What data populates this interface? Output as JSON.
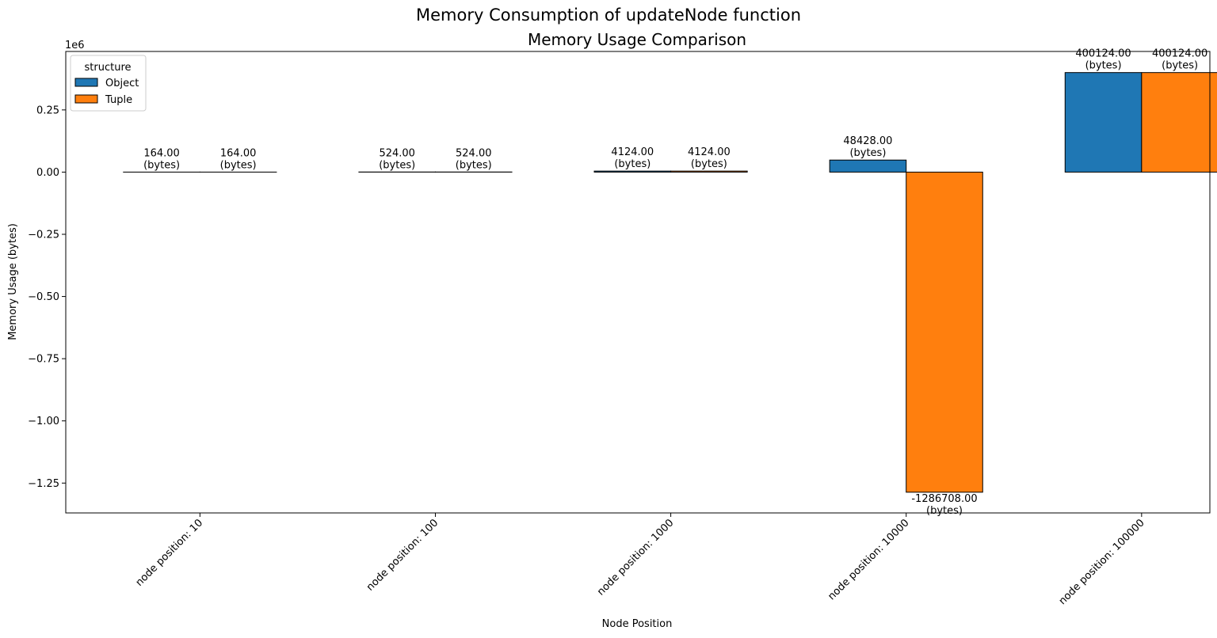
{
  "suptitle": "Memory Consumption of updateNode function",
  "chart_data": {
    "type": "bar",
    "title": "Memory Usage Comparison",
    "xlabel": "Node Position",
    "ylabel": "Memory Usage (bytes)",
    "offset_text": "1e6",
    "categories": [
      "node position: 10",
      "node position: 100",
      "node position: 1000",
      "node position: 10000",
      "node position: 100000"
    ],
    "series": [
      {
        "name": "Object",
        "color": "#1f77b4",
        "values": [
          164,
          524,
          4124,
          48428,
          400124
        ]
      },
      {
        "name": "Tuple",
        "color": "#ff7f0e",
        "values": [
          164,
          524,
          4124,
          -1286708,
          400124
        ]
      }
    ],
    "bar_labels": [
      [
        "164.00\n(bytes)",
        "524.00\n(bytes)",
        "4124.00\n(bytes)",
        "48428.00\n(bytes)",
        "400124.00\n(bytes)"
      ],
      [
        "164.00\n(bytes)",
        "524.00\n(bytes)",
        "4124.00\n(bytes)",
        "-1286708.00\n(bytes)",
        "400124.00\n(bytes)"
      ]
    ],
    "ylim": [
      -1370000,
      485000
    ],
    "yticks": [
      -1.25,
      -1.0,
      -0.75,
      -0.5,
      -0.25,
      0.0,
      0.25
    ],
    "ytick_labels": [
      "−1.25",
      "−1.00",
      "−0.75",
      "−0.50",
      "−0.25",
      "0.00",
      "0.25"
    ],
    "ytick_scale": 1000000,
    "legend": {
      "title": "structure",
      "position": "upper left"
    },
    "grid": false
  }
}
